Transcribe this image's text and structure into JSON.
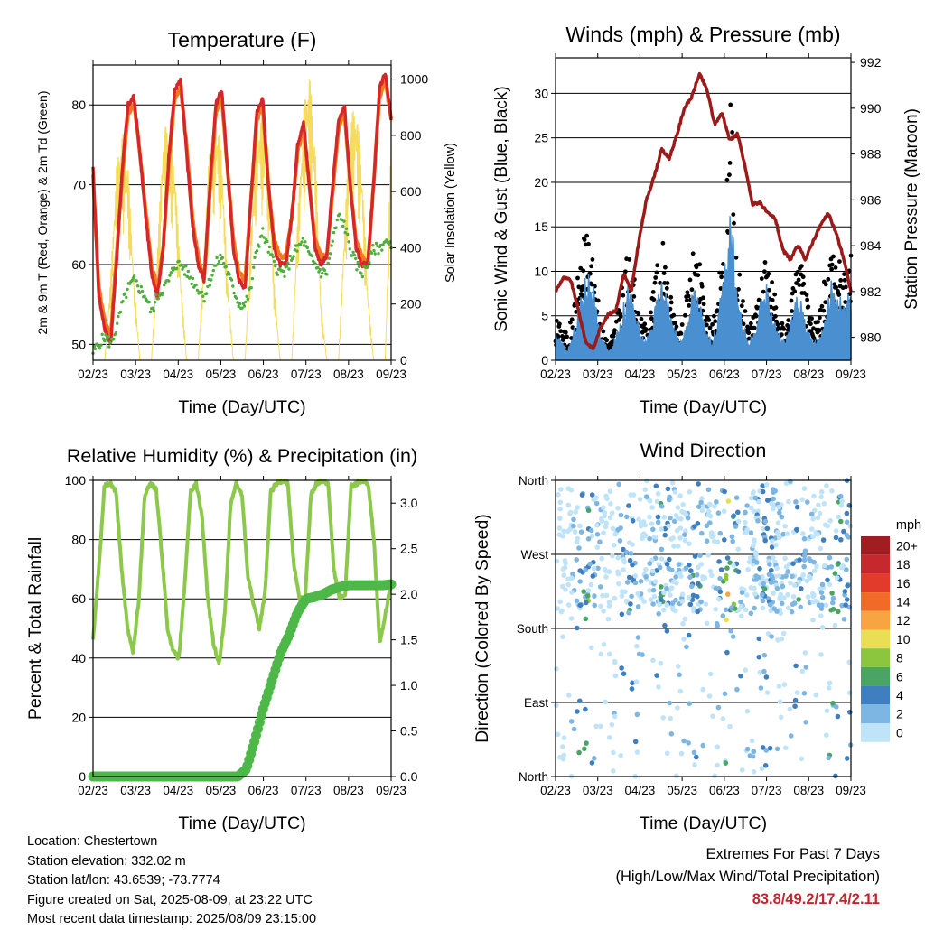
{
  "chart_data": [
    {
      "type": "line",
      "title": "Temperature (F)",
      "xlabel": "Time (Day/UTC)",
      "ylabel": "2m & 9m T (Red, Orange) & 2m Td (Green)",
      "ylabel_right": "Solar Insolation (Yellow)",
      "x_ticks": [
        "02/23",
        "03/23",
        "04/23",
        "05/23",
        "06/23",
        "07/23",
        "08/23",
        "09/23"
      ],
      "y_ticks": [
        50,
        60,
        70,
        80
      ],
      "y_ticks_right": [
        0,
        200,
        400,
        600,
        800,
        1000
      ],
      "ylim": [
        48,
        85
      ],
      "ylim_right": [
        0,
        1050
      ],
      "grid": "horizontal",
      "series": [
        {
          "name": "2m T",
          "color": "#d62728",
          "values": [
            72,
            56,
            52,
            50,
            60,
            72,
            80,
            81,
            74,
            66,
            59,
            56,
            62,
            74,
            82,
            83,
            74,
            65,
            60,
            58,
            70,
            80,
            82,
            72,
            62,
            58,
            57,
            68,
            79,
            81,
            70,
            62,
            60,
            60,
            66,
            75,
            78,
            70,
            62,
            60,
            61,
            70,
            78,
            80,
            70,
            62,
            60,
            60,
            70,
            82,
            84,
            78
          ]
        },
        {
          "name": "9m T",
          "color": "#f07a1f",
          "values": [
            71,
            57,
            53,
            51,
            61,
            71,
            79,
            80,
            74,
            67,
            60,
            57,
            62,
            73,
            81,
            82,
            75,
            66,
            61,
            58,
            69,
            79,
            81,
            72,
            63,
            59,
            58,
            68,
            78,
            80,
            70,
            63,
            61,
            61,
            66,
            74,
            77,
            70,
            63,
            61,
            61,
            69,
            77,
            79,
            70,
            63,
            61,
            60,
            70,
            81,
            83,
            78
          ]
        },
        {
          "name": "2m Td",
          "color": "#4fae3c",
          "values": [
            49,
            50,
            51,
            50,
            52,
            55,
            57,
            58,
            57,
            56,
            54,
            56,
            57,
            58,
            60,
            60,
            59,
            58,
            57,
            56,
            58,
            60,
            61,
            59,
            57,
            55,
            55,
            57,
            62,
            64,
            62,
            60,
            59,
            59,
            61,
            62,
            63,
            61,
            60,
            59,
            59,
            63,
            66,
            65,
            62,
            60,
            59,
            60,
            62,
            62,
            63,
            62
          ]
        },
        {
          "name": "Solar Insolation",
          "color": "#f5dc5e",
          "axis": "right",
          "values": [
            0,
            0,
            0,
            300,
            700,
            820,
            700,
            300,
            0,
            0,
            0,
            400,
            820,
            850,
            700,
            300,
            0,
            0,
            0,
            420,
            800,
            880,
            760,
            300,
            0,
            0,
            0,
            450,
            850,
            900,
            750,
            280,
            0,
            0,
            0,
            520,
            900,
            1030,
            780,
            200,
            0,
            0,
            0,
            480,
            860,
            920,
            700,
            250,
            0,
            0,
            0,
            850
          ]
        }
      ]
    },
    {
      "type": "scatter",
      "title": "Winds (mph) & Pressure (mb)",
      "xlabel": "Time (Day/UTC)",
      "ylabel": "Sonic Wind & Gust (Blue, Black)",
      "ylabel_right": "Station Pressure (Maroon)",
      "x_ticks": [
        "02/23",
        "03/23",
        "04/23",
        "05/23",
        "06/23",
        "07/23",
        "08/23",
        "09/23"
      ],
      "y_ticks": [
        0,
        5,
        10,
        15,
        20,
        25,
        30
      ],
      "y_ticks_right": [
        980,
        982,
        984,
        986,
        988,
        990,
        992
      ],
      "ylim": [
        0,
        34
      ],
      "ylim_right": [
        979,
        992.2
      ],
      "grid": "horizontal",
      "series": [
        {
          "name": "Sonic Wind",
          "color": "#4a90d0",
          "values": [
            3,
            2,
            1,
            3,
            6,
            9,
            10,
            4,
            2,
            1,
            3,
            5,
            8,
            6,
            3,
            2,
            4,
            7,
            9,
            5,
            3,
            2,
            5,
            8,
            6,
            3,
            2,
            5,
            10,
            17,
            8,
            4,
            2,
            3,
            6,
            8,
            5,
            3,
            2,
            4,
            7,
            6,
            3,
            2,
            3,
            6,
            9,
            7,
            6,
            8
          ]
        },
        {
          "name": "Gust",
          "color": "#000000",
          "values": [
            5,
            4,
            3,
            6,
            12,
            16,
            14,
            7,
            3,
            2,
            5,
            9,
            13,
            10,
            5,
            4,
            7,
            12,
            14,
            8,
            5,
            4,
            9,
            13,
            11,
            6,
            4,
            8,
            16,
            31,
            14,
            7,
            4,
            6,
            10,
            13,
            9,
            5,
            4,
            7,
            12,
            11,
            6,
            4,
            6,
            11,
            15,
            12,
            10,
            12
          ]
        },
        {
          "name": "Station Pressure",
          "color": "#9b1b1b",
          "axis": "right",
          "values": [
            982,
            982.6,
            982.5,
            981.2,
            979.8,
            979.5,
            980.5,
            981.0,
            981.2,
            982.8,
            982.0,
            984.2,
            986.0,
            987.0,
            988.2,
            987.8,
            988.8,
            990.0,
            990.5,
            991.5,
            990.8,
            989.3,
            989.8,
            988.6,
            988.9,
            987.5,
            985.8,
            985.9,
            985.4,
            985.2,
            983.8,
            983.4,
            984.0,
            983.4,
            984.2,
            984.9,
            985.4,
            984.6,
            983.5,
            982.0
          ]
        }
      ]
    },
    {
      "type": "line",
      "title": "Relative Humidity (%) & Precipitation (in)",
      "xlabel": "Time (Day/UTC)",
      "ylabel": "Percent & Total Rainfall",
      "x_ticks": [
        "02/23",
        "03/23",
        "04/23",
        "05/23",
        "06/23",
        "07/23",
        "08/23",
        "09/23"
      ],
      "y_ticks": [
        0,
        20,
        40,
        60,
        80,
        100
      ],
      "y_ticks_right": [
        "0.0",
        "0.5",
        "1.0",
        "1.5",
        "2.0",
        "2.5",
        "3.0"
      ],
      "ylim": [
        0,
        100
      ],
      "ylim_right": [
        0,
        3.25
      ],
      "grid": "horizontal",
      "series": [
        {
          "name": "Relative Humidity",
          "color": "#8cc84b",
          "values": [
            46,
            70,
            98,
            99,
            96,
            70,
            50,
            42,
            60,
            95,
            99,
            97,
            75,
            50,
            42,
            40,
            65,
            96,
            99,
            88,
            60,
            45,
            38,
            55,
            92,
            99,
            95,
            68,
            58,
            50,
            62,
            96,
            99,
            100,
            99,
            72,
            60,
            60,
            95,
            99,
            100,
            99,
            70,
            60,
            62,
            98,
            99,
            100,
            99,
            80,
            45,
            55,
            65
          ]
        },
        {
          "name": "Total Precipitation",
          "color": "#4db848",
          "axis": "right",
          "values": [
            0,
            0,
            0,
            0,
            0,
            0,
            0,
            0,
            0,
            0,
            0,
            0,
            0,
            0,
            0,
            0,
            0,
            0,
            0.08,
            0.4,
            0.75,
            1.05,
            1.35,
            1.55,
            1.8,
            1.95,
            1.97,
            2.0,
            2.05,
            2.08,
            2.1,
            2.1,
            2.1,
            2.1,
            2.1,
            2.11
          ]
        }
      ]
    },
    {
      "type": "scatter",
      "title": "Wind Direction",
      "xlabel": "Time (Day/UTC)",
      "ylabel": "Direction (Colored By Speed)",
      "x_ticks": [
        "02/23",
        "03/23",
        "04/23",
        "05/23",
        "06/23",
        "07/23",
        "08/23",
        "09/23"
      ],
      "y_ticks": [
        "North",
        "East",
        "South",
        "West",
        "North"
      ],
      "ylim": [
        0,
        360
      ],
      "grid": "horizontal",
      "colorbar": {
        "title": "mph",
        "labels": [
          "20+",
          "18",
          "16",
          "14",
          "12",
          "10",
          "8",
          "6",
          "4",
          "2",
          "0"
        ],
        "colors": [
          "#a11d21",
          "#c7282d",
          "#e33b2b",
          "#f16a28",
          "#f7a540",
          "#e8df55",
          "#8cc63f",
          "#4aa564",
          "#3f7fbf",
          "#7db6e3",
          "#bfe3f7"
        ]
      }
    }
  ],
  "info": {
    "location": "Location: Chestertown",
    "elevation": "Station elevation: 332.02 m",
    "latlon": "Station lat/lon: 43.6539; -73.7774",
    "created": "Figure created on Sat, 2025-08-09, at 23:22 UTC",
    "recent": "Most recent data timestamp: 2025/08/09 23:15:00"
  },
  "extremes": {
    "title": "Extremes For Past 7 Days",
    "subtitle": "(High/Low/Max Wind/Total Precipitation)",
    "values": "83.8/49.2/17.4/2.11"
  }
}
